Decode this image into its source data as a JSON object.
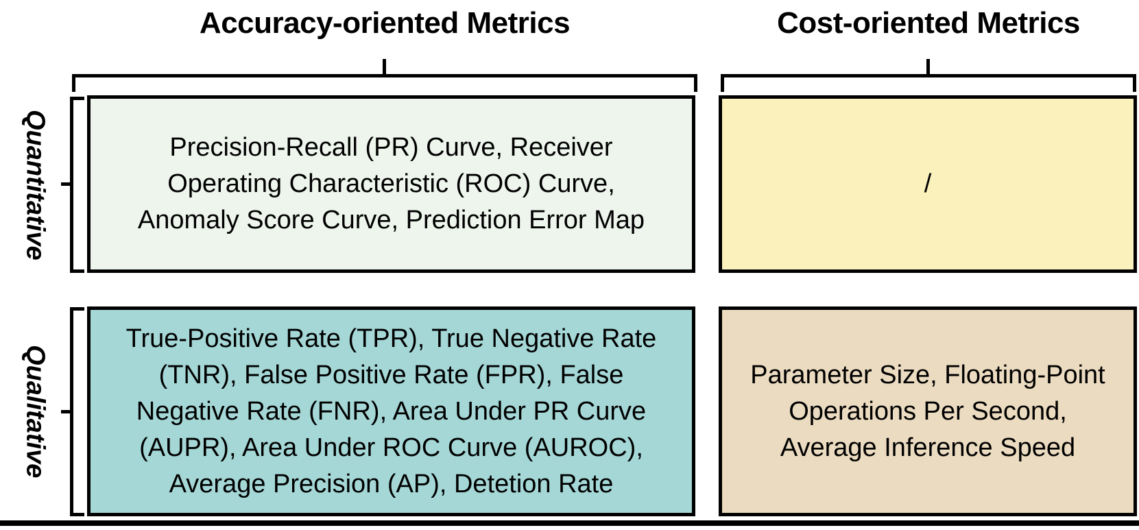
{
  "figure": {
    "type": "matrix-table",
    "columns": [
      {
        "header": "Accuracy-oriented Metrics"
      },
      {
        "header": "Cost-oriented Metrics"
      }
    ],
    "rows": [
      {
        "label": "Quantitative"
      },
      {
        "label": "Qualitative"
      }
    ],
    "cells": [
      {
        "row": "Quantitative",
        "column": "Accuracy-oriented Metrics",
        "lines": [
          "Precision-Recall (PR) Curve, Receiver",
          "Operating Characteristic (ROC) Curve,",
          "Anomaly Score Curve, Prediction Error Map"
        ],
        "bg": "#edf5ec"
      },
      {
        "row": "Quantitative",
        "column": "Cost-oriented Metrics",
        "lines": [
          "/"
        ],
        "bg": "#fbf1bd"
      },
      {
        "row": "Qualitative",
        "column": "Accuracy-oriented Metrics",
        "lines": [
          "True-Positive Rate (TPR), True Negative Rate",
          "(TNR), False Positive Rate (FPR), False",
          "Negative Rate (FNR), Area Under PR Curve",
          "(AUPR), Area Under ROC Curve (AUROC),",
          "Average Precision (AP), Detetion Rate"
        ],
        "bg": "#a5d7d7"
      },
      {
        "row": "Qualitative",
        "column": "Cost-oriented Metrics",
        "lines": [
          "Parameter Size, Floating-Point",
          "Operations Per Second,",
          "Average Inference Speed"
        ],
        "bg": "#ebdbc0"
      }
    ],
    "colors": {
      "line": "#000000",
      "text": "#000000",
      "background": "#ffffff"
    }
  }
}
